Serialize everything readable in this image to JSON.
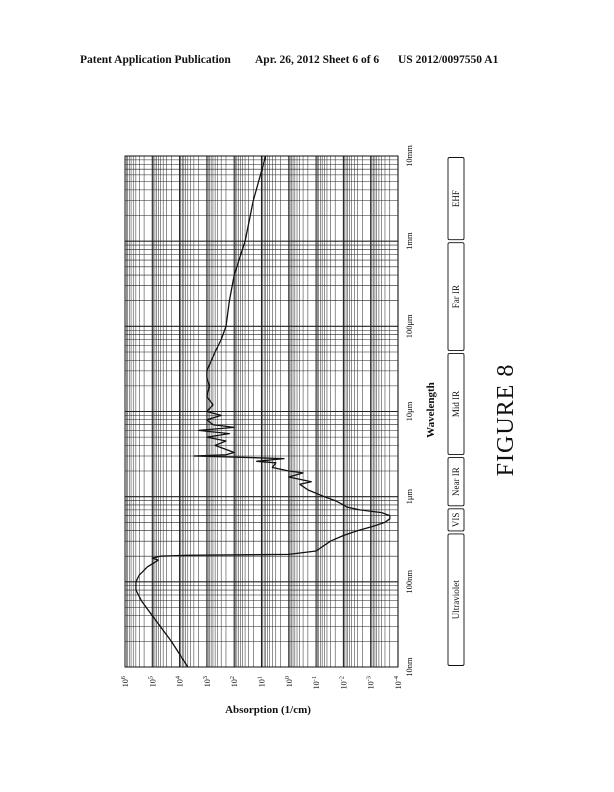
{
  "header": {
    "left": "Patent Application Publication",
    "middle": "Apr. 26, 2012  Sheet 6 of 6",
    "right": "US 2012/0097550 A1"
  },
  "figure_label": "FIGURE 8",
  "chart_data": {
    "type": "line",
    "orientation": "rotated-90-ccw",
    "xlabel": "Wavelength",
    "ylabel": "Absorption (1/cm)",
    "x_scale": "log",
    "y_scale": "log",
    "xlim_m": [
      1e-08,
      0.01
    ],
    "ylim": [
      0.0001,
      1000000.0
    ],
    "x_ticks": [
      {
        "value": 1e-08,
        "label": "10nm"
      },
      {
        "value": 1e-07,
        "label": "100nm"
      },
      {
        "value": 1e-06,
        "label": "1μm"
      },
      {
        "value": 1e-05,
        "label": "10μm"
      },
      {
        "value": 0.0001,
        "label": "100μm"
      },
      {
        "value": 0.001,
        "label": "1mm"
      },
      {
        "value": 0.01,
        "label": "10mm"
      }
    ],
    "y_ticks": [
      {
        "value": 1000000.0,
        "base": "10",
        "exp": "6"
      },
      {
        "value": 100000.0,
        "base": "10",
        "exp": "5"
      },
      {
        "value": 10000.0,
        "base": "10",
        "exp": "4"
      },
      {
        "value": 1000.0,
        "base": "10",
        "exp": "3"
      },
      {
        "value": 100.0,
        "base": "10",
        "exp": "2"
      },
      {
        "value": 10.0,
        "base": "10",
        "exp": "1"
      },
      {
        "value": 1.0,
        "base": "10",
        "exp": "0"
      },
      {
        "value": 0.1,
        "base": "10",
        "exp": "-1"
      },
      {
        "value": 0.01,
        "base": "10",
        "exp": "-2"
      },
      {
        "value": 0.001,
        "base": "10",
        "exp": "-3"
      },
      {
        "value": 0.0001,
        "base": "10",
        "exp": "-4"
      }
    ],
    "bands": [
      {
        "label": "Ultraviolet",
        "from": 1e-08,
        "to": 3.8e-07
      },
      {
        "label": "VIS",
        "from": 3.8e-07,
        "to": 7.5e-07
      },
      {
        "label": "Near IR",
        "from": 7.5e-07,
        "to": 3e-06
      },
      {
        "label": "Mid IR",
        "from": 3e-06,
        "to": 5e-05
      },
      {
        "label": "Far IR",
        "from": 5e-05,
        "to": 0.001
      },
      {
        "label": "EHF",
        "from": 0.001,
        "to": 0.01
      }
    ],
    "grid": true,
    "series": [
      {
        "x": [
          1e-08,
          2e-08,
          4e-08,
          6e-08,
          8e-08,
          1e-07,
          1.2e-07,
          1.5e-07,
          1.8e-07,
          1.9e-07,
          2e-07,
          2.05e-07,
          2.1e-07,
          2.3e-07,
          3e-07,
          3.5e-07,
          4e-07,
          4.5e-07,
          5e-07,
          5.5e-07,
          6e-07,
          6.5e-07,
          7e-07,
          7.5e-07,
          8e-07,
          9e-07,
          1e-06,
          1.2e-06,
          1.4e-06,
          1.5e-06,
          1.7e-06,
          1.9e-06,
          2e-06,
          2.2e-06,
          2.5e-06,
          2.6e-06,
          2.8e-06,
          2.9e-06,
          3e-06,
          3.1e-06,
          3.3e-06,
          4e-06,
          4.5e-06,
          5e-06,
          5.5e-06,
          6e-06,
          6.5e-06,
          7e-06,
          8e-06,
          9e-06,
          1e-05,
          1.2e-05,
          1.5e-05,
          2e-05,
          2.5e-05,
          3e-05,
          5e-05,
          7e-05,
          0.0001,
          0.0002,
          0.0004,
          0.001,
          0.003,
          0.01
        ],
        "y": [
          5000.0,
          20000.0,
          100000.0,
          250000.0,
          400000.0,
          400000.0,
          300000.0,
          150000.0,
          60000.0,
          100000.0,
          50000.0,
          5000.0,
          1,
          0.1,
          0.03,
          0.01,
          0.003,
          0.0008,
          0.0003,
          0.0002,
          0.0002,
          0.0004,
          0.0025,
          0.007,
          0.01,
          0.02,
          0.05,
          0.2,
          0.4,
          0.15,
          1,
          0.3,
          1,
          4,
          3,
          15,
          1.5,
          50,
          3000.0,
          200,
          100,
          500,
          200,
          1000.0,
          150,
          2000.0,
          100,
          600,
          1000.0,
          300,
          1000.0,
          600,
          1000.0,
          800,
          1000.0,
          1000.0,
          500,
          300,
          200,
          150,
          100,
          40,
          20,
          7
        ]
      }
    ]
  }
}
